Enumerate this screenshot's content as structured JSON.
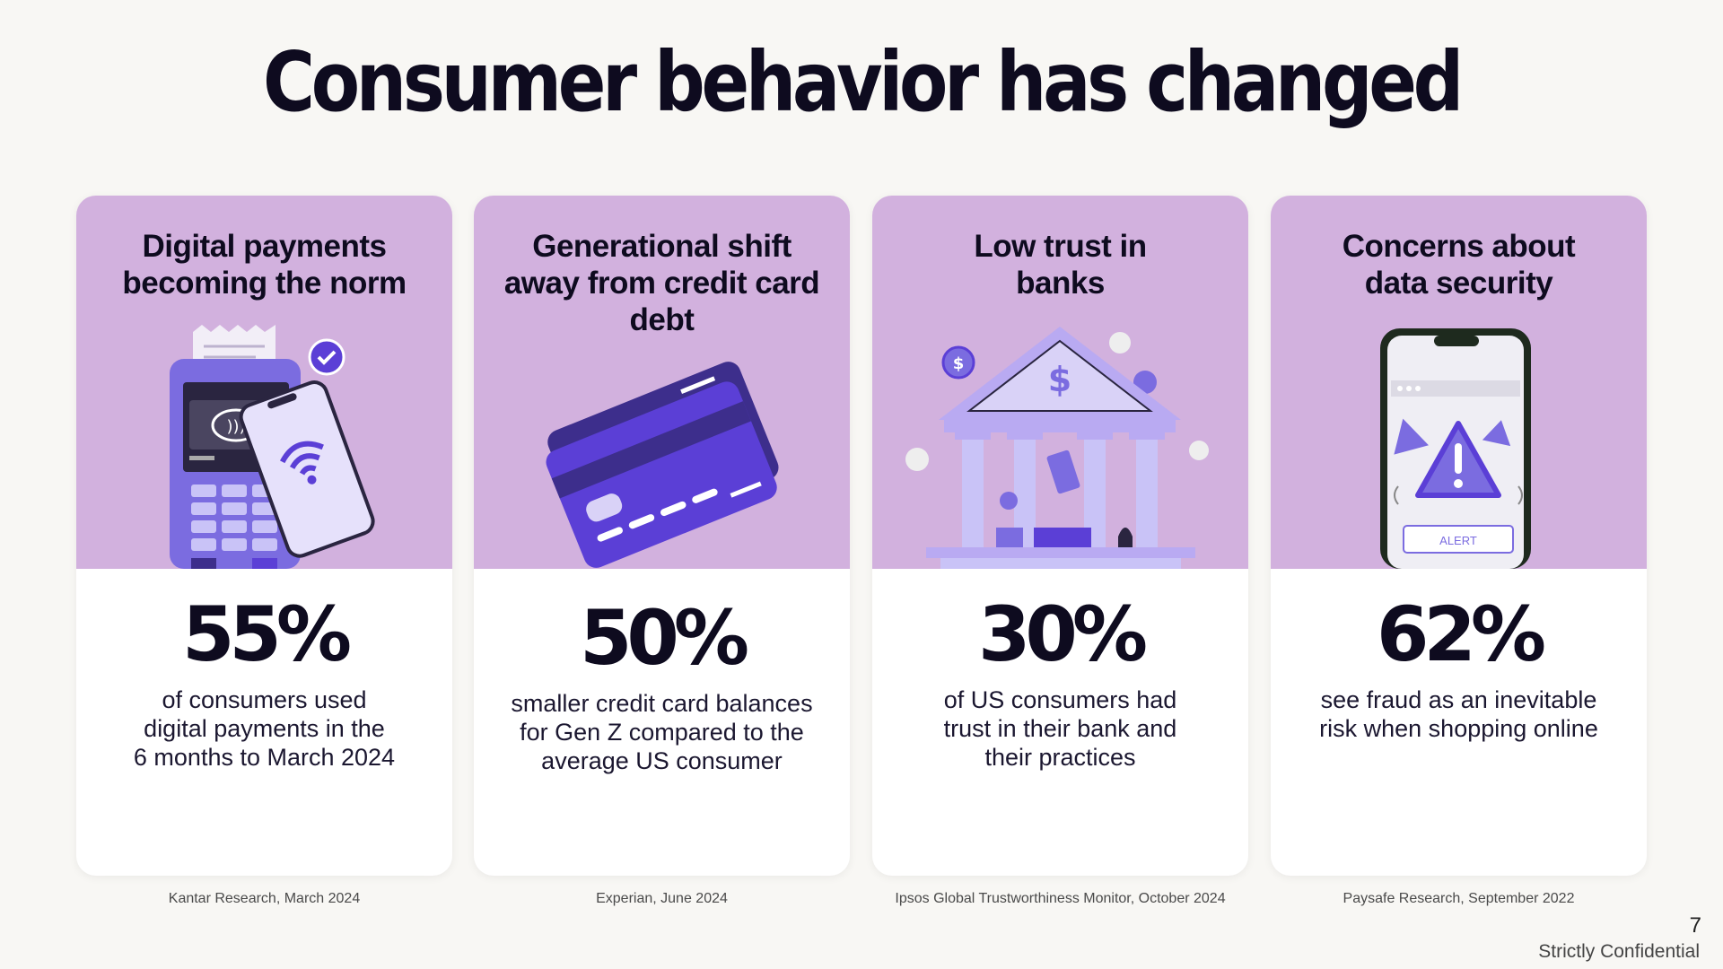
{
  "title": "Consumer behavior has changed",
  "cards": [
    {
      "heading_lines": [
        "Digital payments",
        "becoming the norm"
      ],
      "stat": "55%",
      "desc_lines": [
        "of consumers used",
        "digital payments in the",
        "6 months to March 2024"
      ],
      "source": "Kantar Research, March 2024",
      "icon": "payment-terminal-phone-icon"
    },
    {
      "heading_lines": [
        "Generational shift",
        "away from credit card",
        "debt"
      ],
      "stat": "50%",
      "desc_lines": [
        "smaller credit card balances",
        "for Gen Z compared to the",
        "average US consumer"
      ],
      "source": "Experian, June 2024",
      "icon": "credit-cards-icon"
    },
    {
      "heading_lines": [
        "Low trust in",
        "banks"
      ],
      "stat": "30%",
      "desc_lines": [
        "of US consumers had",
        "trust in their bank and",
        "their practices"
      ],
      "source": "Ipsos Global Trustworthiness Monitor, October 2024",
      "icon": "bank-building-icon"
    },
    {
      "heading_lines": [
        "Concerns about",
        "data security"
      ],
      "stat": "62%",
      "desc_lines": [
        "see fraud as an inevitable",
        "risk when shopping online"
      ],
      "source": "Paysafe Research, September 2022",
      "icon": "phone-alert-icon",
      "alert_label": "ALERT"
    }
  ],
  "page_number": "7",
  "confidentiality": "Strictly Confidential",
  "colors": {
    "card_top": "#d2b1de",
    "accent_purple": "#5b3fd6",
    "dark_text": "#0e0b1f"
  }
}
